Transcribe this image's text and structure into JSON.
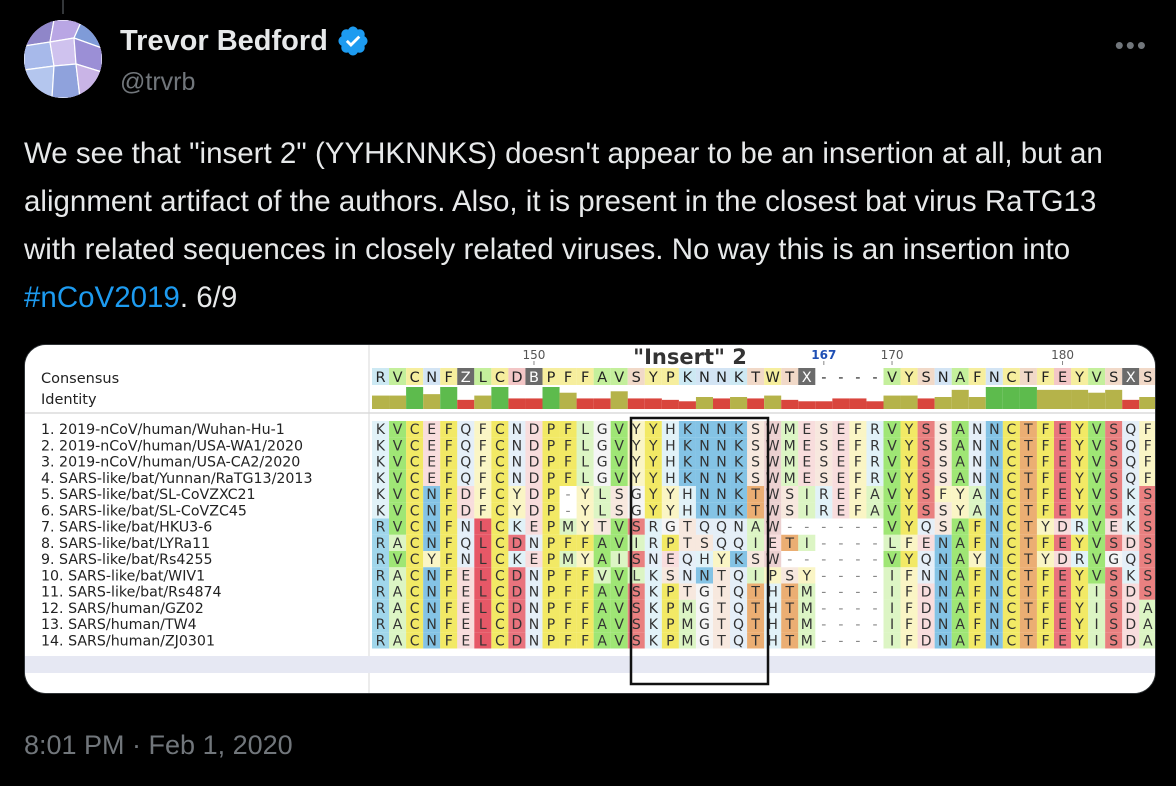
{
  "tweet": {
    "author_name": "Trevor Bedford",
    "handle": "@trvrb",
    "text_before": "We see that \"insert 2\" (YYHKNNKS) doesn't appear to be an insertion at all, but an alignment artifact of the authors. Also, it is present in the closest bat virus RaTG13 with related sequences in closely related viruses. No way this is an insertion into ",
    "hashtag": "#nCoV2019",
    "text_after": ". 6/9",
    "timestamp": "8:01 PM · Feb 1, 2020",
    "more_label": "•••"
  },
  "icons": {
    "verified": "verified-badge-icon",
    "more": "more-options-icon",
    "avatar": "avatar-image"
  },
  "colors": {
    "link": "#1d9bf0",
    "verified": "#1d9bf0",
    "muted": "#71767b"
  },
  "alignment": {
    "insert_label": "\"Insert\" 2",
    "ruler": [
      "150",
      "167",
      "170",
      "180"
    ],
    "consensus_label": "Consensus",
    "identity_label": "Identity",
    "consensus": "RVCNFZLCDBPFFAVSYPKNNKTWTX----VYSNAFNCTFEYVSXS",
    "rows": [
      {
        "label": "1. 2019-nCoV/human/Wuhan-Hu-1",
        "seq": "KVCEFQFCNDPFLGVYYHKNNKSWMESEFRVYSSANNCTFEYVSQF"
      },
      {
        "label": "2. 2019-nCoV/human/USA-WA1/2020",
        "seq": "KVCEFQFCNDPFLGVYYHKNNKSWMESEFRVYSSANNCTFEYVSQF"
      },
      {
        "label": "3. 2019-nCoV/human/USA-CA2/2020",
        "seq": "KVCEFQFCNDPFLGVYYHKNNKSWMESEFRVYSSANNCTFEYVSQF"
      },
      {
        "label": "4. SARS-like/bat/Yunnan/RaTG13/2013",
        "seq": "KVCEFQFCNDPFLGVYYHKNNKSWMESEFRVYSSANNCTFEYVSQF"
      },
      {
        "label": "5. SARS-like/bat/SL-CoVZXC21",
        "seq": "KVCNFDFCYDP-YLSGYYHNNKTWSIREFAVYSFYANCTFEYVSKS"
      },
      {
        "label": "6. SARS-like/bat/SL-CoVZC45",
        "seq": "KVCNFDFCYDP-YLSGYYHNNKTWSIREFAVYSSYANCTFEYVSKS"
      },
      {
        "label": "7. SARS-like/bat/HKU3-6",
        "seq": "RVCNFNLCKEPMYTVSRGTQQNAW------VYQSAFNCTYDRVEKS"
      },
      {
        "label": "8. SARS-like/bat/LYRa11",
        "seq": "RACNFQLCDNPFFAVIRPTSQQIETI----LFENAFNCTFEYVSDS"
      },
      {
        "label": "9. SARS-like/bat/Rs4255",
        "seq": "RVCYFNLCKEPMYAISNEQHYKSW------VYQNAYNCTYDRVGQS"
      },
      {
        "label": "10. SARS-like/bat/WIV1",
        "seq": "RACNFELCDNPFFVVLKSNNTQIPSY----IFNNAFNCTFEYVSKS"
      },
      {
        "label": "11. SARS-like/bat/Rs4874",
        "seq": "RACNFELCDNPFFAVSKPTGTQTHTM----IFDNAFNCTFEYISDS"
      },
      {
        "label": "12. SARS/human/GZ02",
        "seq": "RACNFELCDNPFFAVSKPMGTQTHTM----IFDNAFNCTFEYISDA"
      },
      {
        "label": "13. SARS/human/TW4",
        "seq": "RACNFELCDNPFFAVSKPMGTQTHTM----IFDNAFNCTFEYISDA"
      },
      {
        "label": "14. SARS/human/ZJ0301",
        "seq": "RACNFELCDNPFFAVSKPMGTQTHTM----IFDNAFNCTFEYISDA"
      }
    ]
  }
}
